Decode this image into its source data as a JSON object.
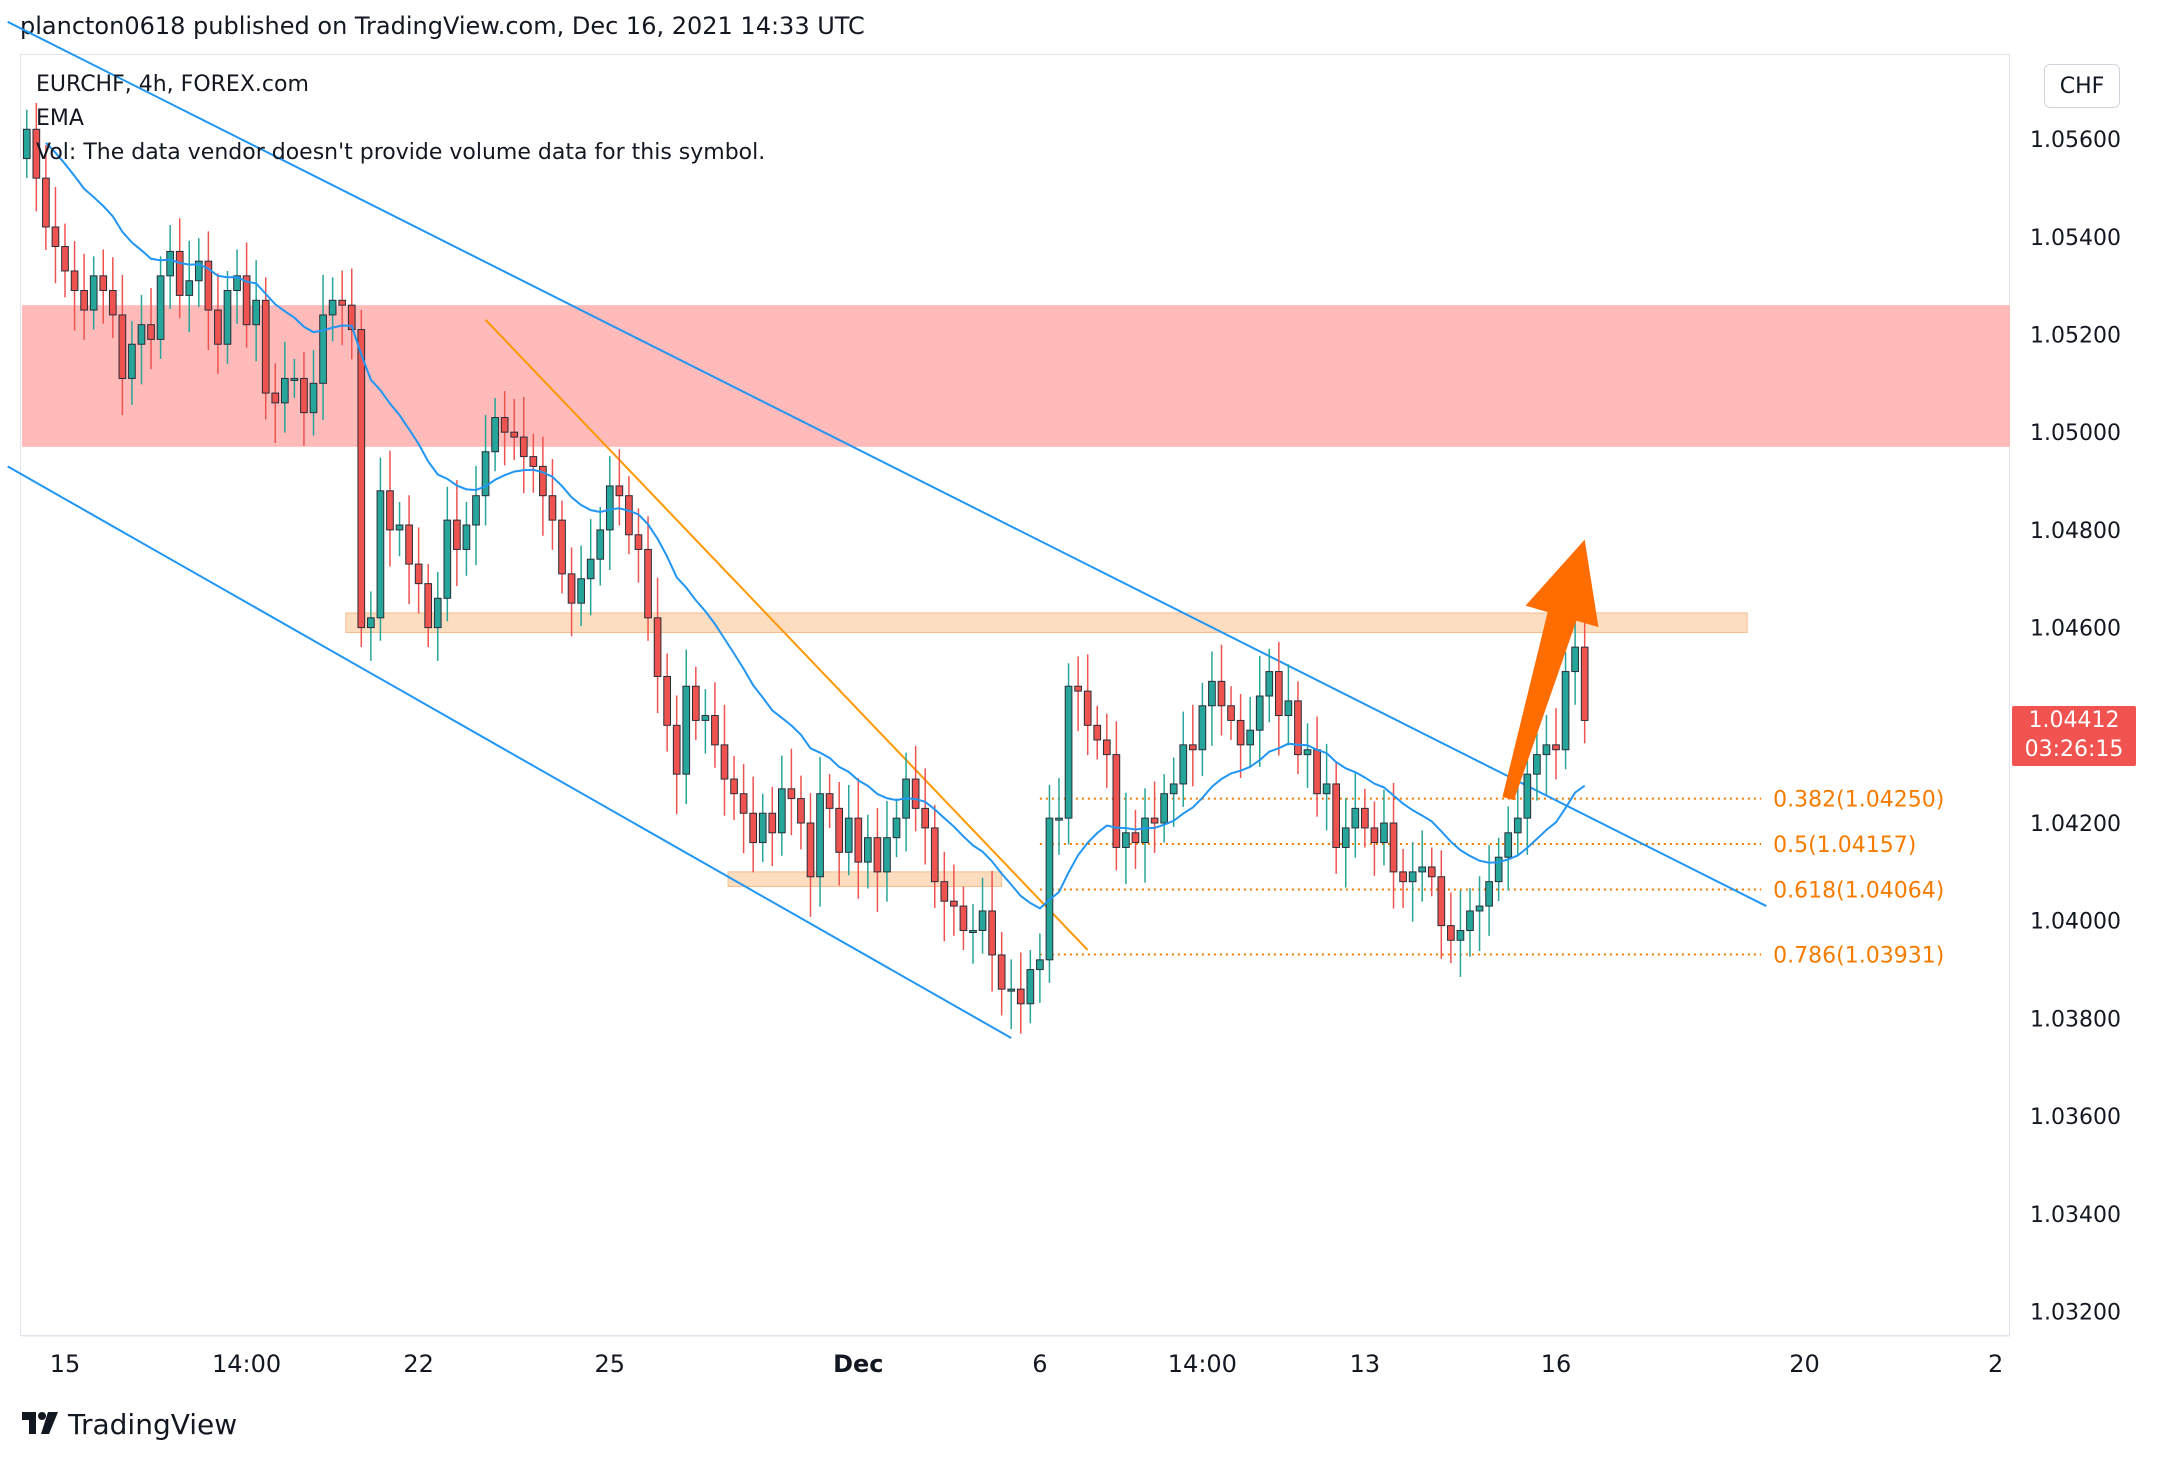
{
  "header": {
    "text": "plancton0618 published on TradingView.com, Dec 16, 2021 14:33 UTC"
  },
  "legend": {
    "symbol": "EURCHF, 4h, FOREX.com",
    "ema": "EMA",
    "vol": "Vol: The data vendor doesn't provide volume data for this symbol."
  },
  "currency": "CHF",
  "last_price": {
    "value": "1.04412",
    "countdown": "03:26:15"
  },
  "footer": {
    "brand": "TradingView"
  },
  "colors": {
    "up": "#26a69a",
    "down": "#ef5350",
    "ema": "#2196f3",
    "channel": "#2196f3",
    "fib": "#f57c00",
    "zone_red": "#ffb6b6",
    "zone_orange": "#fdd8b5",
    "arrow": "#ff6d00"
  },
  "chart_data": {
    "type": "candlestick",
    "symbol": "EURCHF",
    "timeframe": "4h",
    "ylim": [
      1.0315,
      1.0577
    ],
    "y_ticks": [
      "1.05600",
      "1.05400",
      "1.05200",
      "1.05000",
      "1.04800",
      "1.04600",
      "1.04400",
      "1.04200",
      "1.04000",
      "1.03800",
      "1.03600",
      "1.03400",
      "1.03200"
    ],
    "x_ticks": [
      {
        "label": "15",
        "bar": 4,
        "bold": false
      },
      {
        "label": "14:00",
        "bar": 23,
        "bold": false
      },
      {
        "label": "22",
        "bar": 41,
        "bold": false
      },
      {
        "label": "25",
        "bar": 61,
        "bold": false
      },
      {
        "label": "Dec",
        "bar": 87,
        "bold": true
      },
      {
        "label": "6",
        "bar": 106,
        "bold": false
      },
      {
        "label": "14:00",
        "bar": 123,
        "bold": false
      },
      {
        "label": "13",
        "bar": 140,
        "bold": false
      },
      {
        "label": "16",
        "bar": 160,
        "bold": false
      },
      {
        "label": "20",
        "bar": 186,
        "bold": false
      },
      {
        "label": "2",
        "bar": 206,
        "bold": false
      }
    ],
    "bars_visible": 208,
    "closes": [
      1.0562,
      1.0552,
      1.0542,
      1.0538,
      1.0533,
      1.0529,
      1.0525,
      1.0532,
      1.0529,
      1.0524,
      1.0511,
      1.0518,
      1.0522,
      1.0519,
      1.0532,
      1.0537,
      1.0528,
      1.0531,
      1.0535,
      1.0525,
      1.0518,
      1.0529,
      1.0532,
      1.0522,
      1.0527,
      1.0508,
      1.0506,
      1.0511,
      1.0511,
      1.0504,
      1.051,
      1.0524,
      1.0527,
      1.0526,
      1.0521,
      1.046,
      1.0462,
      1.0488,
      1.048,
      1.0481,
      1.0473,
      1.0469,
      1.046,
      1.0466,
      1.0482,
      1.0476,
      1.0481,
      1.0487,
      1.0496,
      1.0503,
      1.05,
      1.0499,
      1.0495,
      1.0493,
      1.0487,
      1.0482,
      1.0471,
      1.0465,
      1.047,
      1.0474,
      1.048,
      1.0489,
      1.0487,
      1.0479,
      1.0476,
      1.0462,
      1.045,
      1.044,
      1.043,
      1.0448,
      1.0441,
      1.0442,
      1.0436,
      1.0429,
      1.0426,
      1.0422,
      1.0416,
      1.0422,
      1.0418,
      1.0427,
      1.0425,
      1.042,
      1.0409,
      1.0426,
      1.0423,
      1.0414,
      1.0421,
      1.0412,
      1.0417,
      1.041,
      1.0417,
      1.0421,
      1.0429,
      1.0423,
      1.0419,
      1.0408,
      1.0404,
      1.0403,
      1.0398,
      1.0398,
      1.0402,
      1.0393,
      1.0386,
      1.0386,
      1.0383,
      1.039,
      1.0392,
      1.0421,
      1.0421,
      1.0448,
      1.0447,
      1.044,
      1.0437,
      1.0434,
      1.0415,
      1.0418,
      1.0416,
      1.0421,
      1.042,
      1.0426,
      1.0428,
      1.0436,
      1.0435,
      1.0444,
      1.0449,
      1.0444,
      1.0441,
      1.0436,
      1.0439,
      1.0446,
      1.0451,
      1.0442,
      1.0445,
      1.0434,
      1.0435,
      1.0426,
      1.0428,
      1.0415,
      1.0419,
      1.0423,
      1.0419,
      1.0416,
      1.042,
      1.041,
      1.0408,
      1.041,
      1.0411,
      1.0409,
      1.0399,
      1.0396,
      1.0398,
      1.0402,
      1.0403,
      1.0408,
      1.0413,
      1.0418,
      1.0421,
      1.043,
      1.0434,
      1.0436,
      1.0435,
      1.0451,
      1.0456,
      1.0441
    ],
    "ema_period": 20,
    "zones": [
      {
        "name": "resistance-zone",
        "y_top": 1.0526,
        "y_bottom": 1.0497,
        "color": "red"
      },
      {
        "name": "flip-zone-upper",
        "y_top": 1.0463,
        "y_bottom": 1.0459,
        "color": "orange"
      },
      {
        "name": "flip-zone-lower",
        "y_top": 1.041,
        "y_bottom": 1.0407,
        "color": "orange"
      }
    ],
    "channel_upper": {
      "bar1": -2,
      "y1": 1.0584,
      "bar2": 182,
      "y2": 1.0403
    },
    "channel_lower": {
      "bar1": -2,
      "y1": 1.0493,
      "bar2": 103,
      "y2": 1.0376
    },
    "orange_trendline": {
      "bar1": 48,
      "y1": 1.0523,
      "bar2": 111,
      "y2": 1.0394
    },
    "fib_levels": [
      {
        "label": "0.382(1.04250)",
        "value": 1.0425
      },
      {
        "label": "0.5(1.04157)",
        "value": 1.04157
      },
      {
        "label": "0.618(1.04064)",
        "value": 1.04064
      },
      {
        "label": "0.786(1.03931)",
        "value": 1.03931
      }
    ],
    "fib_start_bar": 106,
    "fib_end_bar": 180,
    "arrow": {
      "from_bar": 155,
      "from_y": 1.0425,
      "to_bar": 163,
      "to_y": 1.0478
    }
  }
}
